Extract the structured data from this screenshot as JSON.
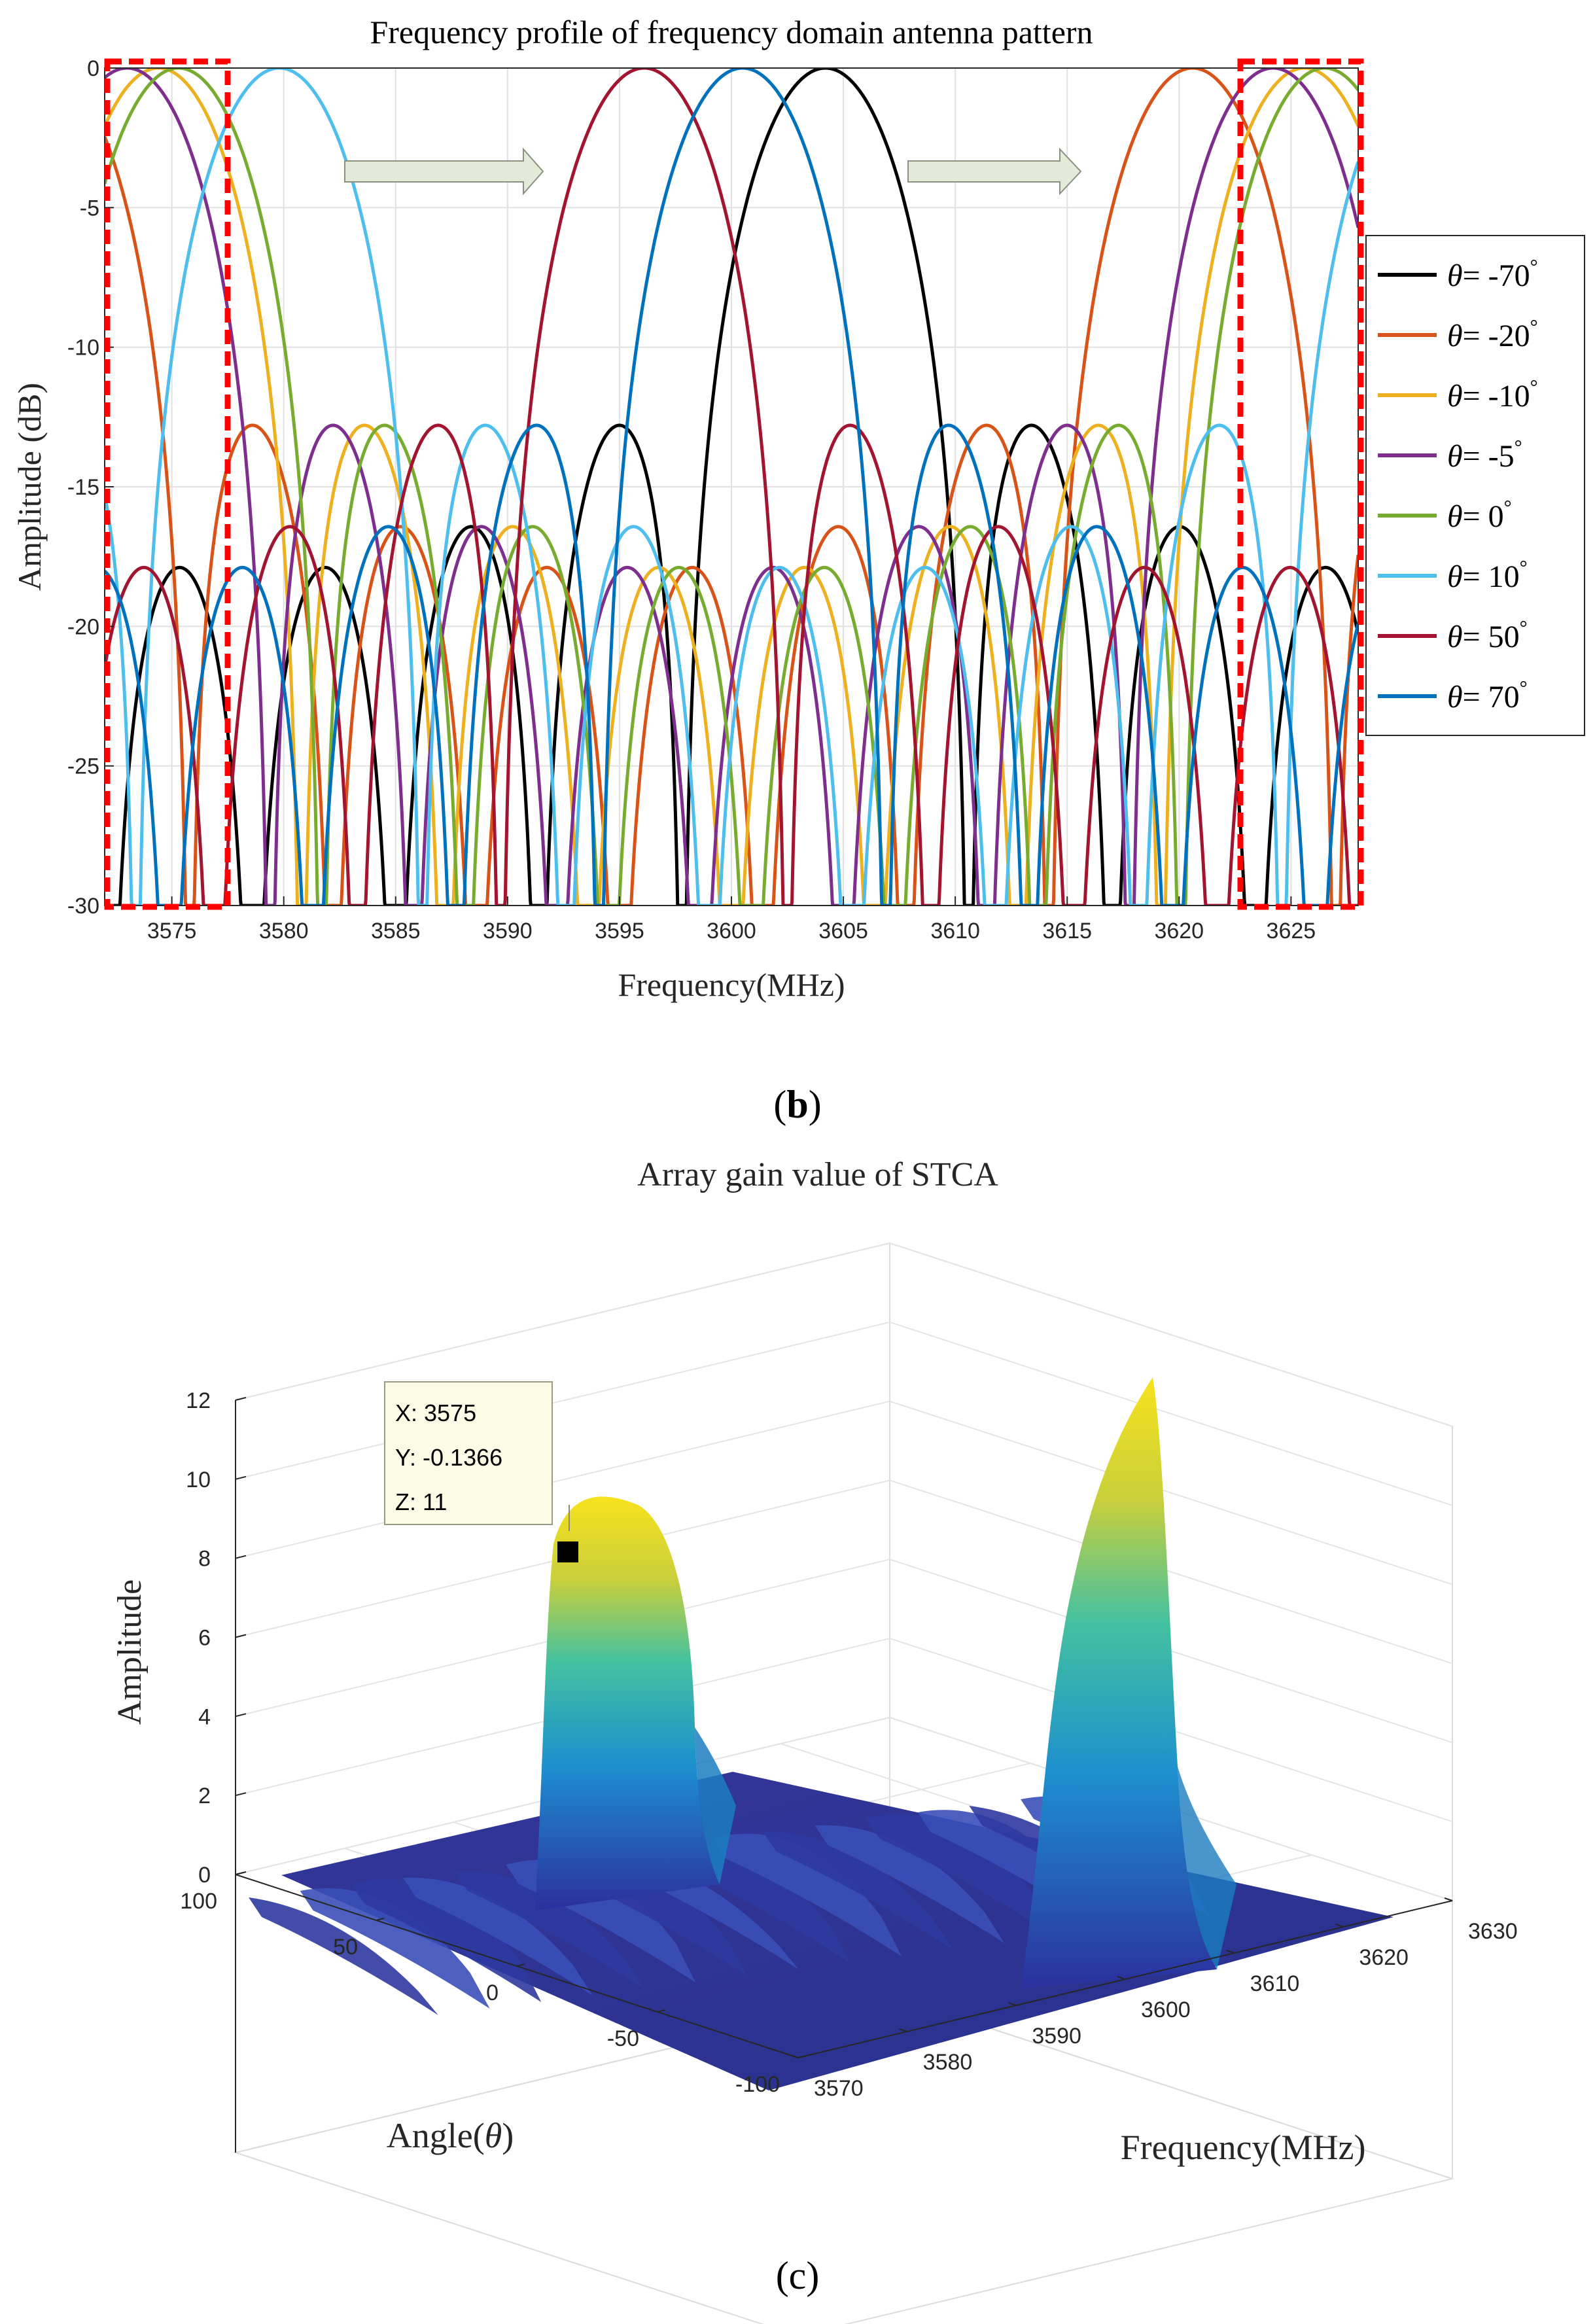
{
  "panel_b": {
    "caption": "(b)",
    "caption_open": "(",
    "caption_letter": "b",
    "caption_close": ")"
  },
  "panel_c": {
    "caption": "(c)",
    "caption_open": "(",
    "caption_letter": "c",
    "caption_close": ")"
  },
  "colors": {
    "black": "#000000",
    "orange": "#D95319",
    "yellow": "#EDB120",
    "purple": "#7E2F8E",
    "green": "#77AC30",
    "lightblue": "#4DBEEE",
    "darkred": "#A2142F",
    "blue": "#0072BD",
    "highlight": "#ff0000",
    "arrow_fill": "#e4ead8"
  },
  "chart_data": [
    {
      "type": "line",
      "title": "Frequency profile of frequency domain antenna pattern",
      "xlabel": "Frequency(MHz)",
      "ylabel": "Amplitude (dB)",
      "xlim": [
        3572,
        3628
      ],
      "ylim": [
        -30,
        0
      ],
      "xticks": [
        3575,
        3580,
        3585,
        3590,
        3595,
        3600,
        3605,
        3610,
        3615,
        3620,
        3625
      ],
      "yticks": [
        0,
        -5,
        -10,
        -15,
        -20,
        -25,
        -30
      ],
      "grid": true,
      "legend_position": "right",
      "mainlobe_period_mhz": 51.2,
      "mainlobe_width_mhz": 6.4,
      "series": [
        {
          "name": "θ= -70°",
          "label": "-70",
          "color_key": "black",
          "peak_frequency": 3604.2
        },
        {
          "name": "θ= -20°",
          "label": "-20",
          "color_key": "orange",
          "peak_frequency": 3620.6
        },
        {
          "name": "θ= -10°",
          "label": "-10",
          "color_key": "yellow",
          "peak_frequency": 3625.6
        },
        {
          "name": "θ= -5°",
          "label": "-5",
          "color_key": "purple",
          "peak_frequency": 3573.0
        },
        {
          "name": "θ= 0°",
          "label": "0",
          "color_key": "green",
          "peak_frequency": 3575.3
        },
        {
          "name": "θ= 10°",
          "label": "10",
          "color_key": "lightblue",
          "peak_frequency": 3579.8
        },
        {
          "name": "θ= 50°",
          "label": "50",
          "color_key": "darkred",
          "peak_frequency": 3596.1
        },
        {
          "name": "θ= 70°",
          "label": "70",
          "color_key": "blue",
          "peak_frequency": 3600.5
        }
      ],
      "annotations": [
        "arrow 3583–3592 MHz at -3.8 dB",
        "arrow 3608–3617 MHz at -3.8 dB",
        "highlighted band 3572–3577.3 MHz",
        "highlighted band 3623–3628 MHz"
      ]
    },
    {
      "type": "surface3d",
      "title": "Array gain value of STCA",
      "xlabel": "Frequency(MHz)",
      "ylabel": "Angle(θ)",
      "ylabel_prefix": "Angle(",
      "ylabel_symbol": "θ",
      "ylabel_suffix": ")",
      "zlabel": "Amplitude",
      "xlim": [
        3570,
        3630
      ],
      "ylim": [
        -100,
        100
      ],
      "zlim": [
        0,
        12
      ],
      "xticks": [
        3570,
        3580,
        3590,
        3600,
        3610,
        3620,
        3630
      ],
      "yticks": [
        -100,
        -50,
        0,
        50,
        100
      ],
      "zticks": [
        0,
        2,
        4,
        6,
        8,
        10,
        12
      ],
      "peaks": [
        {
          "frequency": 3576,
          "amplitude": 9.2
        },
        {
          "frequency": 3621,
          "amplitude": 12
        }
      ],
      "datatip": {
        "x_text": "X: 3575",
        "y_text": "Y: -0.1366",
        "z_text": "Z: 11",
        "x": 3575,
        "y": -0.1366,
        "z": 11
      }
    }
  ]
}
